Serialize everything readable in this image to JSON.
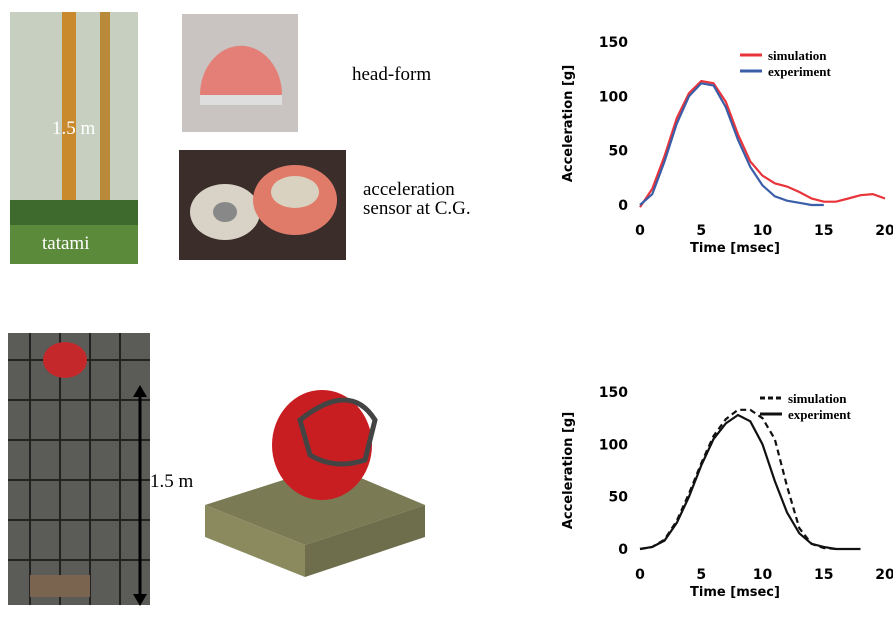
{
  "labels": {
    "drop_height_top": "1.5 m",
    "tatami": "tatami",
    "headform": "head-form",
    "sensor": [
      "acceleration",
      "sensor at C.G."
    ],
    "drop_height_bottom": "1.5 m"
  },
  "chart_data": [
    {
      "type": "line",
      "x_label": "Time [msec]",
      "y_label": "Acceleration [g]",
      "x": [
        0,
        1,
        2,
        3,
        4,
        5,
        6,
        7,
        8,
        9,
        10,
        11,
        12,
        13,
        14,
        15,
        16,
        17,
        18,
        19,
        20
      ],
      "xlim": [
        0,
        20
      ],
      "xticks": [
        0,
        5,
        10,
        15,
        20
      ],
      "ylim": [
        0,
        150
      ],
      "yticks": [
        0,
        50,
        100,
        150
      ],
      "grid": false,
      "series": [
        {
          "name": "simulation",
          "color": "#e8343a",
          "line_style": "solid",
          "values": [
            -2,
            15,
            45,
            80,
            103,
            114,
            112,
            95,
            65,
            40,
            27,
            20,
            17,
            12,
            6,
            3,
            3,
            6,
            9,
            10,
            6
          ]
        },
        {
          "name": "experiment",
          "color": "#3a5ea8",
          "line_style": "solid",
          "values": [
            0,
            10,
            40,
            75,
            100,
            112,
            110,
            90,
            60,
            35,
            18,
            8,
            4,
            2,
            0,
            0,
            null,
            null,
            null,
            null,
            null
          ]
        }
      ]
    },
    {
      "type": "line",
      "x_label": "Time [msec]",
      "y_label": "Acceleration [g]",
      "x": [
        0,
        1,
        2,
        3,
        4,
        5,
        6,
        7,
        8,
        9,
        10,
        11,
        12,
        13,
        14,
        15,
        16,
        17,
        18,
        19,
        20
      ],
      "xlim": [
        0,
        20
      ],
      "xticks": [
        0,
        5,
        10,
        15,
        20
      ],
      "ylim": [
        0,
        150
      ],
      "yticks": [
        0,
        50,
        100,
        150
      ],
      "grid": false,
      "series": [
        {
          "name": "simulation",
          "color": "#111111",
          "line_style": "dashed",
          "values": [
            0,
            2,
            9,
            27,
            53,
            82,
            108,
            124,
            133,
            133,
            125,
            105,
            60,
            20,
            5,
            1,
            0,
            null,
            null,
            null,
            null
          ]
        },
        {
          "name": "experiment",
          "color": "#111111",
          "line_style": "solid",
          "values": [
            0,
            2,
            8,
            25,
            50,
            80,
            105,
            120,
            128,
            122,
            100,
            65,
            35,
            15,
            5,
            2,
            0,
            0,
            0,
            null,
            null
          ]
        }
      ]
    }
  ]
}
